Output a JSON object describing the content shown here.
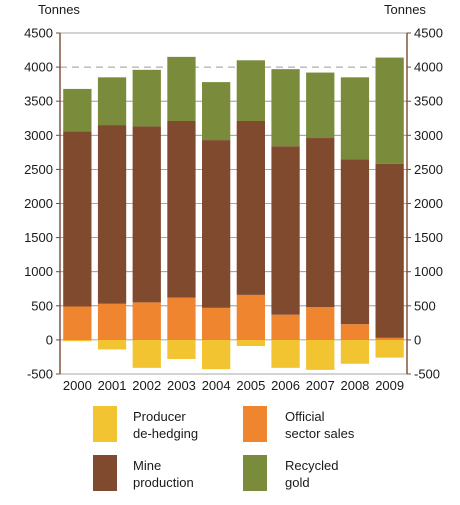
{
  "chart_data": {
    "type": "bar",
    "stacked": true,
    "y_unit_left": "Tonnes",
    "y_unit_right": "Tonnes",
    "categories": [
      "2000",
      "2001",
      "2002",
      "2003",
      "2004",
      "2005",
      "2006",
      "2007",
      "2008",
      "2009"
    ],
    "ylim": [
      -500,
      4500
    ],
    "yticks": [
      -500,
      0,
      500,
      1000,
      1500,
      2000,
      2500,
      3000,
      3500,
      4000,
      4500
    ],
    "ytick_labels": [
      "-500",
      "0",
      "500",
      "1000",
      "1500",
      "2000",
      "2500",
      "3000",
      "3500",
      "4000",
      "4500"
    ],
    "reference_line": 4000,
    "grid": "horizontal",
    "legend_placement": "bottom",
    "series": [
      {
        "name": "Producer de-hedging",
        "label_lines": [
          "Producer",
          "de-hedging"
        ],
        "color": "#f2c431",
        "values": [
          -20,
          -140,
          -410,
          -280,
          -430,
          -90,
          -410,
          -440,
          -350,
          -260
        ]
      },
      {
        "name": "Official sector sales",
        "label_lines": [
          "Official",
          "sector sales"
        ],
        "color": "#f08530",
        "values": [
          490,
          530,
          550,
          620,
          470,
          660,
          370,
          480,
          230,
          30
        ]
      },
      {
        "name": "Mine production",
        "label_lines": [
          "Mine",
          "production"
        ],
        "color": "#7f4a2e",
        "values": [
          2570,
          2620,
          2580,
          2590,
          2460,
          2550,
          2470,
          2480,
          2420,
          2550
        ]
      },
      {
        "name": "Recycled gold",
        "label_lines": [
          "Recycled",
          "gold"
        ],
        "color": "#7a8c3b",
        "values": [
          620,
          700,
          830,
          940,
          850,
          890,
          1130,
          960,
          1200,
          1560
        ]
      }
    ]
  }
}
